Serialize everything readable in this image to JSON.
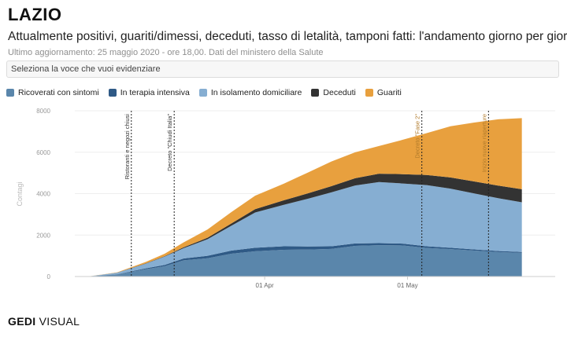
{
  "header": {
    "title": "LAZIO",
    "subtitle": "Attualmente positivi, guariti/dimessi, deceduti, tasso di letalità, tamponi fatti: l'andamento giorno per giorno",
    "updated": "Ultimo aggiornamento: 25 maggio 2020 - ore 18,00. Dati del ministero della Salute"
  },
  "selector": {
    "placeholder": "Seleziona la voce che vuoi evidenziare"
  },
  "legend": [
    {
      "label": "Ricoverati con sintomi",
      "color": "#5a86ab"
    },
    {
      "label": "In terapia intensiva",
      "color": "#2f5a86"
    },
    {
      "label": "In isolamento domiciliare",
      "color": "#86aed2"
    },
    {
      "label": "Deceduti",
      "color": "#333333"
    },
    {
      "label": "Guariti",
      "color": "#e8a03e"
    }
  ],
  "brand": {
    "gedi": "GEDI",
    "visual": "VISUAL"
  },
  "chart_data": {
    "type": "area",
    "stacked": true,
    "ylabel": "Contagi",
    "ylim": [
      0,
      8000
    ],
    "yticks": [
      0,
      2000,
      4000,
      6000,
      8000
    ],
    "xticks": [
      {
        "date": "2020-04-01",
        "label": "01 Apr"
      },
      {
        "date": "2020-05-01",
        "label": "01 May"
      }
    ],
    "x": [
      "2020-02-24",
      "2020-03-01",
      "2020-03-07",
      "2020-03-11",
      "2020-03-15",
      "2020-03-20",
      "2020-03-25",
      "2020-03-30",
      "2020-04-05",
      "2020-04-10",
      "2020-04-15",
      "2020-04-20",
      "2020-04-25",
      "2020-04-30",
      "2020-05-05",
      "2020-05-10",
      "2020-05-15",
      "2020-05-20",
      "2020-05-25"
    ],
    "series": [
      {
        "name": "Ricoverati con sintomi",
        "color": "#5a86ab",
        "values": [
          3,
          100,
          350,
          500,
          780,
          880,
          1100,
          1220,
          1290,
          1300,
          1330,
          1480,
          1510,
          1500,
          1380,
          1320,
          1250,
          1180,
          1140
        ]
      },
      {
        "name": "In terapia intensiva",
        "color": "#2f5a86",
        "values": [
          0,
          10,
          45,
          60,
          90,
          120,
          150,
          170,
          170,
          150,
          130,
          115,
          100,
          90,
          80,
          70,
          60,
          50,
          45
        ]
      },
      {
        "name": "In isolamento domiciliare",
        "color": "#86aed2",
        "values": [
          0,
          70,
          220,
          400,
          500,
          800,
          1200,
          1700,
          2000,
          2300,
          2600,
          2800,
          2950,
          2900,
          2950,
          2850,
          2700,
          2550,
          2400
        ]
      },
      {
        "name": "Deceduti",
        "color": "#333333",
        "values": [
          0,
          5,
          15,
          20,
          40,
          70,
          110,
          160,
          220,
          260,
          300,
          350,
          400,
          450,
          490,
          540,
          580,
          610,
          630
        ]
      },
      {
        "name": "Guariti",
        "color": "#e8a03e",
        "values": [
          0,
          15,
          70,
          120,
          240,
          400,
          550,
          650,
          800,
          1000,
          1190,
          1250,
          1340,
          1660,
          2020,
          2470,
          2840,
          3200,
          3430
        ]
      }
    ],
    "annotations": [
      {
        "date": "2020-03-04",
        "label": "Ristoranti e negozi chiusi"
      },
      {
        "date": "2020-03-13",
        "label": "Decreto \"Chiudi Italia\""
      },
      {
        "date": "2020-05-04",
        "label": "Decreto \"Fase 2\""
      },
      {
        "date": "2020-05-18",
        "label": "Inizio nuove riaperture"
      }
    ]
  }
}
